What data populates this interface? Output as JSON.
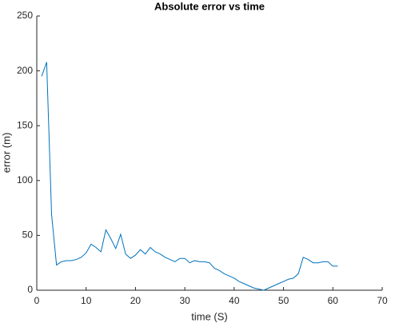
{
  "chart_data": {
    "type": "line",
    "title": "Absolute error vs time",
    "x_label": "time (S)",
    "y_label": "error (m)",
    "x": [
      1,
      2,
      3,
      4,
      5,
      6,
      7,
      8,
      9,
      10,
      11,
      12,
      13,
      14,
      15,
      16,
      17,
      18,
      19,
      20,
      21,
      22,
      23,
      24,
      25,
      26,
      27,
      28,
      29,
      30,
      31,
      32,
      33,
      34,
      35,
      36,
      37,
      38,
      39,
      40,
      41,
      42,
      43,
      44,
      45,
      46,
      47,
      48,
      49,
      50,
      51,
      52,
      53,
      54,
      55,
      56,
      57,
      58,
      59,
      60,
      61
    ],
    "series": [
      {
        "color": "#0072bd",
        "values": [
          195,
          208,
          69,
          23,
          26,
          27,
          27,
          28,
          30,
          34,
          42,
          39,
          35,
          55,
          47,
          38,
          51,
          33,
          29,
          32,
          37,
          33,
          39,
          35,
          33,
          30,
          28,
          26,
          29,
          29,
          25,
          27,
          26,
          26,
          25,
          20,
          18,
          15,
          13,
          11,
          8,
          6,
          4,
          2,
          1,
          0,
          2,
          4,
          6,
          8,
          10,
          11,
          15,
          30,
          28,
          25,
          25,
          26,
          26,
          22,
          22
        ]
      }
    ],
    "xlim": [
      0,
      70
    ],
    "xticks": [
      0,
      10,
      20,
      30,
      40,
      50,
      60,
      70
    ],
    "ylim": [
      0,
      250
    ],
    "yticks": [
      0,
      50,
      100,
      150,
      200,
      250
    ]
  }
}
